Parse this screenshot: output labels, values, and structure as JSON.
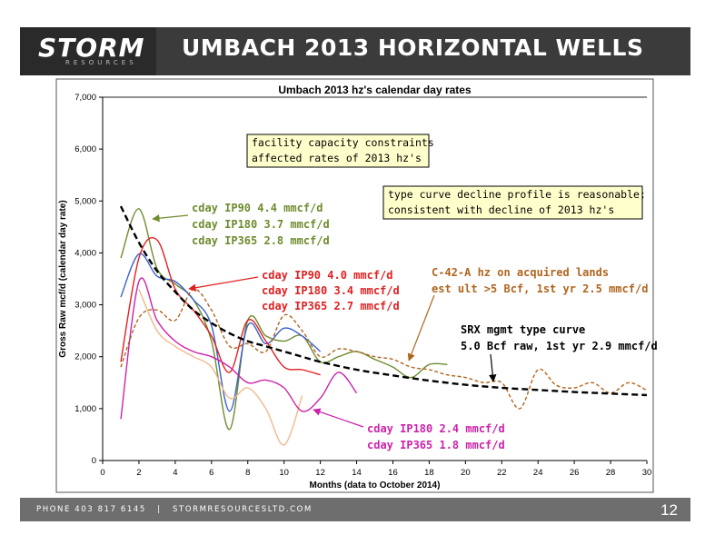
{
  "header": {
    "logo_text": "STORM",
    "logo_subtext": "RESOURCES",
    "title": "UMBACH 2013 HORIZONTAL WELLS"
  },
  "footer": {
    "phone": "PHONE 403 817 6145",
    "divider": "|",
    "website": "STORMRESOURCESLTD.COM",
    "page_number": "12"
  },
  "colors": {
    "header_bg": "#3b3b3b",
    "footer_bg": "#6e6e6e",
    "plot_bg": "#ffffff",
    "annotation_bg": "#ffffcc",
    "green": "#6e8c2e",
    "red": "#e02020",
    "magenta": "#cc22aa",
    "brown": "#b0651e",
    "blue": "#3a5fcd",
    "tan": "#f0b98a",
    "black": "#000000"
  },
  "chart_data": {
    "type": "line",
    "title": "Umbach 2013 hz's calendar day rates",
    "xlabel": "Months (data to October 2014)",
    "ylabel": "Gross Raw mcf/d (calendar day rate)",
    "xlim": [
      0,
      30
    ],
    "ylim": [
      0,
      7000
    ],
    "x_ticks": [
      0,
      2,
      4,
      6,
      8,
      10,
      12,
      14,
      16,
      18,
      20,
      22,
      24,
      26,
      28,
      30
    ],
    "y_ticks": [
      0,
      1000,
      2000,
      3000,
      4000,
      5000,
      6000,
      7000
    ],
    "y_tick_labels": [
      "0",
      "1,000",
      "2,000",
      "3,000",
      "4,000",
      "5,000",
      "6,000",
      "7,000"
    ],
    "grid": false,
    "series": [
      {
        "color": "#6e8c2e",
        "style": "solid",
        "x": [
          1,
          2,
          3,
          4,
          5,
          6,
          7,
          8,
          9,
          10,
          11,
          12,
          13,
          14,
          15,
          16,
          17,
          18,
          19
        ],
        "y": [
          3900,
          4850,
          3700,
          3400,
          3100,
          2300,
          600,
          2700,
          2400,
          2300,
          2400,
          1900,
          2000,
          2100,
          1950,
          1800,
          1600,
          1850,
          1850
        ]
      },
      {
        "color": "#3a5fcd",
        "style": "solid",
        "x": [
          1,
          2,
          3,
          4,
          5,
          6,
          7,
          8,
          9,
          10,
          11,
          12
        ],
        "y": [
          3150,
          3980,
          3550,
          3450,
          3100,
          2600,
          950,
          2600,
          2250,
          2550,
          2400,
          2100
        ]
      },
      {
        "color": "#e02020",
        "style": "solid",
        "x": [
          1,
          2,
          3,
          4,
          5,
          6,
          7,
          8,
          9,
          10,
          11,
          12
        ],
        "y": [
          1900,
          3900,
          4250,
          3300,
          2900,
          2400,
          1700,
          2700,
          2300,
          1800,
          1750,
          1650
        ]
      },
      {
        "color": "#f0b98a",
        "style": "solid",
        "x": [
          2,
          3,
          4,
          5,
          6,
          7,
          8,
          9,
          10,
          11
        ],
        "y": [
          3300,
          2500,
          2200,
          2000,
          1800,
          1200,
          1400,
          1000,
          300,
          1250
        ]
      },
      {
        "color": "#cc22aa",
        "style": "solid",
        "x": [
          1,
          2,
          3,
          4,
          5,
          6,
          7,
          8,
          9,
          10,
          11,
          12,
          13,
          14
        ],
        "y": [
          800,
          3450,
          2700,
          2300,
          2100,
          2000,
          1800,
          1500,
          1550,
          1400,
          950,
          1200,
          1700,
          1300
        ]
      },
      {
        "color": "#b0651e",
        "style": "dashed",
        "x": [
          1,
          2,
          3,
          4,
          5,
          6,
          7,
          8,
          9,
          10,
          11,
          12,
          13,
          14,
          15,
          16,
          17,
          18,
          19,
          20,
          21,
          22,
          23,
          24,
          25,
          26,
          27,
          28,
          29,
          30
        ],
        "y": [
          1800,
          2750,
          2900,
          2700,
          3300,
          2900,
          2200,
          2250,
          2100,
          2800,
          2500,
          2000,
          2150,
          2100,
          2000,
          1950,
          1800,
          1750,
          1650,
          1600,
          1500,
          1500,
          1000,
          1750,
          1450,
          1400,
          1500,
          1300,
          1500,
          1350
        ]
      },
      {
        "color": "#000000",
        "style": "dashed",
        "x": [
          1,
          2,
          3,
          4,
          5,
          6,
          7,
          8,
          9,
          10,
          11,
          12,
          14,
          16,
          18,
          20,
          22,
          24,
          26,
          28,
          30
        ],
        "y": [
          4900,
          4200,
          3650,
          3250,
          2900,
          2650,
          2450,
          2300,
          2200,
          2100,
          2000,
          1900,
          1750,
          1640,
          1540,
          1460,
          1400,
          1360,
          1320,
          1290,
          1260
        ]
      }
    ],
    "annotations": [
      {
        "lines": [
          "facility capacity constraints",
          "affected rates of 2013 hz's"
        ],
        "boxed": true
      },
      {
        "lines": [
          "type curve decline profile is reasonable;",
          "consistent with decline of 2013 hz's"
        ],
        "boxed": true
      },
      {
        "lines": [
          "cday IP90  4.4 mmcf/d",
          "cday IP180 3.7 mmcf/d",
          "cday IP365 2.8 mmcf/d"
        ],
        "color": "#6e8c2e"
      },
      {
        "lines": [
          "cday IP90 4.0 mmcf/d",
          "cday IP180 3.4 mmcf/d",
          "cday IP365 2.7 mmcf/d"
        ],
        "color": "#e02020"
      },
      {
        "lines": [
          "C-42-A hz on acquired lands",
          "est ult >5 Bcf, 1st yr 2.5 mmcf/d"
        ],
        "color": "#b0651e"
      },
      {
        "lines": [
          "SRX mgmt type curve",
          "5.0 Bcf raw, 1st yr 2.9 mmcf/d"
        ],
        "color": "#000000"
      },
      {
        "lines": [
          "cday IP180 2.4 mmcf/d",
          "cday IP365 1.8 mmcf/d"
        ],
        "color": "#cc22aa"
      }
    ]
  }
}
